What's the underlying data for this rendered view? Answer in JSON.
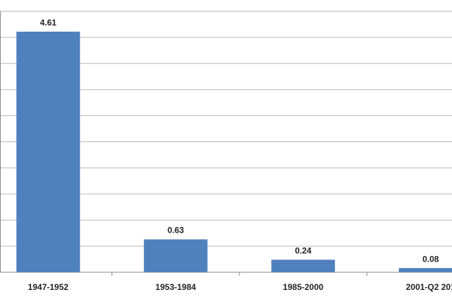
{
  "chart_data": {
    "type": "bar",
    "categories": [
      "1947-1952",
      "1953-1984",
      "1985-2000",
      "2001-Q2 201"
    ],
    "values": [
      4.61,
      0.63,
      0.24,
      0.08
    ],
    "color": "#4f81bd",
    "ylim": [
      0,
      5
    ],
    "yticks": [
      0,
      0.5,
      1,
      1.5,
      2,
      2.5,
      3,
      3.5,
      4,
      4.5,
      5
    ],
    "grid": true
  }
}
